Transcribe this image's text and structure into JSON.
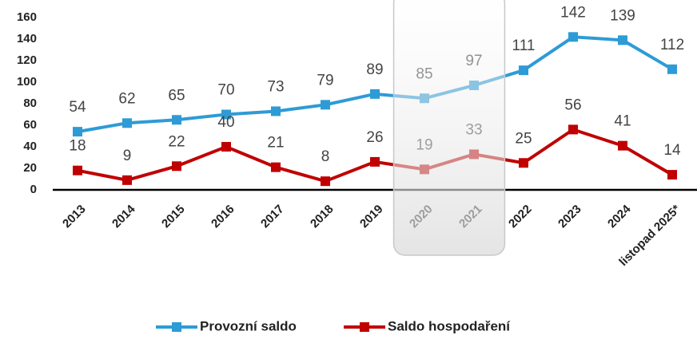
{
  "chart_data": {
    "type": "line",
    "categories": [
      "2013",
      "2014",
      "2015",
      "2016",
      "2017",
      "2018",
      "2019",
      "2020",
      "2021",
      "2022",
      "2023",
      "2024",
      "listopad 2025*"
    ],
    "series": [
      {
        "name": "Provozní saldo",
        "color": "#2e9bd6",
        "values": [
          54,
          62,
          65,
          70,
          73,
          79,
          89,
          85,
          97,
          111,
          142,
          139,
          112
        ]
      },
      {
        "name": "Saldo hospodaření",
        "color": "#c00000",
        "values": [
          18,
          9,
          22,
          40,
          21,
          8,
          26,
          19,
          33,
          25,
          56,
          41,
          14
        ]
      }
    ],
    "ylim": [
      0,
      160
    ],
    "yticks": [
      0,
      20,
      40,
      60,
      80,
      100,
      120,
      140,
      160
    ],
    "grid": false,
    "legend": "bottom"
  }
}
